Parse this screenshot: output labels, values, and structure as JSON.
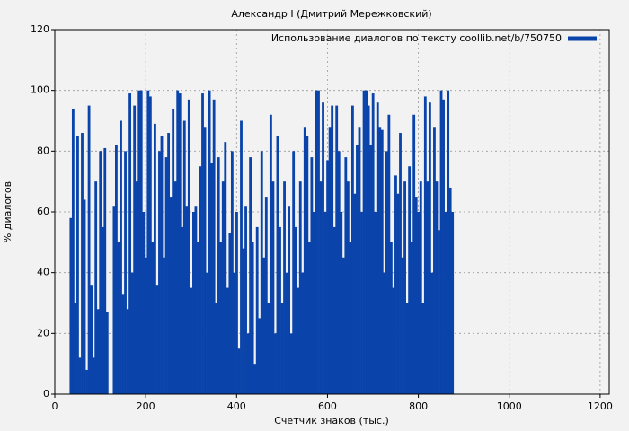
{
  "chart_data": {
    "type": "bar",
    "title": "Александр I (Дмитрий Мережковский)",
    "x_label": "Счетчик знаков (тыс.)",
    "y_label": "% диалогов",
    "legend": "upper right",
    "grid": true,
    "xlim": [
      0,
      1220
    ],
    "ylim": [
      0,
      120
    ],
    "xticks": [
      0,
      200,
      400,
      600,
      800,
      1000,
      1200
    ],
    "yticks": [
      0,
      20,
      40,
      60,
      80,
      100,
      120
    ],
    "x": [
      35,
      40,
      45,
      50,
      55,
      60,
      65,
      70,
      75,
      80,
      85,
      90,
      95,
      100,
      105,
      110,
      115,
      120,
      125,
      130,
      135,
      140,
      145,
      150,
      155,
      160,
      165,
      170,
      175,
      180,
      185,
      190,
      195,
      200,
      205,
      210,
      215,
      220,
      225,
      230,
      235,
      240,
      245,
      250,
      255,
      260,
      265,
      270,
      275,
      280,
      285,
      290,
      295,
      300,
      305,
      310,
      315,
      320,
      325,
      330,
      335,
      340,
      345,
      350,
      355,
      360,
      365,
      370,
      375,
      380,
      385,
      390,
      395,
      400,
      405,
      410,
      415,
      420,
      425,
      430,
      435,
      440,
      445,
      450,
      455,
      460,
      465,
      470,
      475,
      480,
      485,
      490,
      495,
      500,
      505,
      510,
      515,
      520,
      525,
      530,
      535,
      540,
      545,
      550,
      555,
      560,
      565,
      570,
      575,
      580,
      585,
      590,
      595,
      600,
      605,
      610,
      615,
      620,
      625,
      630,
      635,
      640,
      645,
      650,
      655,
      660,
      665,
      670,
      675,
      680,
      685,
      690,
      695,
      700,
      705,
      710,
      715,
      720,
      725,
      730,
      735,
      740,
      745,
      750,
      755,
      760,
      765,
      770,
      775,
      780,
      785,
      790,
      795,
      800,
      805,
      810,
      815,
      820,
      825,
      830,
      835,
      840,
      845,
      850,
      855,
      860,
      865,
      870,
      875
    ],
    "series": [
      {
        "name": "Использование диалогов по тексту coollib.net/b/750750",
        "color": "#0a44aa",
        "values": [
          58,
          94,
          30,
          85,
          12,
          86,
          64,
          8,
          95,
          36,
          12,
          70,
          28,
          80,
          55,
          81,
          27,
          0,
          0,
          62,
          82,
          50,
          90,
          33,
          80,
          28,
          99,
          40,
          95,
          70,
          100,
          100,
          60,
          45,
          100,
          98,
          50,
          89,
          36,
          80,
          85,
          45,
          78,
          86,
          65,
          94,
          70,
          100,
          99,
          55,
          90,
          62,
          97,
          35,
          60,
          62,
          50,
          75,
          99,
          88,
          40,
          100,
          76,
          97,
          30,
          78,
          50,
          70,
          83,
          35,
          53,
          80,
          40,
          60,
          15,
          90,
          48,
          62,
          20,
          78,
          50,
          10,
          55,
          25,
          80,
          45,
          65,
          30,
          92,
          70,
          20,
          85,
          55,
          30,
          70,
          40,
          62,
          20,
          80,
          55,
          35,
          70,
          40,
          88,
          85,
          50,
          78,
          60,
          100,
          100,
          70,
          96,
          60,
          77,
          88,
          95,
          55,
          95,
          80,
          60,
          45,
          78,
          70,
          50,
          95,
          66,
          82,
          88,
          60,
          100,
          100,
          95,
          82,
          99,
          60,
          96,
          88,
          87,
          40,
          80,
          92,
          50,
          35,
          72,
          66,
          86,
          45,
          70,
          30,
          75,
          50,
          92,
          65,
          60,
          70,
          30,
          98,
          70,
          96,
          40,
          88,
          70,
          54,
          100,
          97,
          60,
          100,
          68,
          60
        ]
      }
    ]
  }
}
